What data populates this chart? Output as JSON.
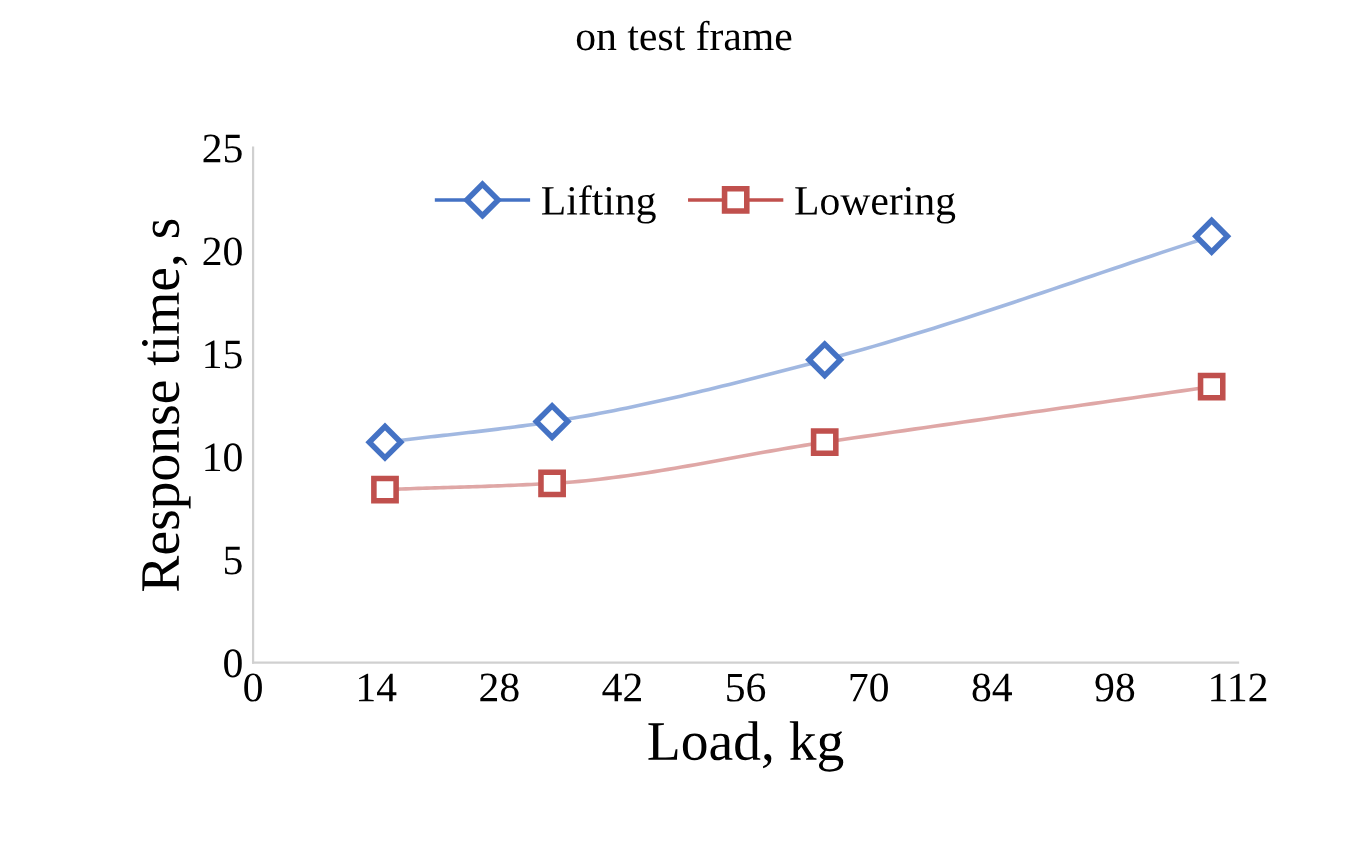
{
  "chart_data": {
    "type": "line",
    "title": "on test frame",
    "xlabel": "Load, kg",
    "ylabel": "Response time, s",
    "xlim": [
      0,
      112
    ],
    "xticks": [
      0,
      14,
      28,
      42,
      56,
      70,
      84,
      98,
      112
    ],
    "ylim": [
      0,
      25
    ],
    "yticks": [
      0,
      5,
      10,
      15,
      20,
      25
    ],
    "grid": false,
    "legend": "top",
    "line_style": "solid",
    "series": [
      {
        "name": "Lifting",
        "color": "#4472c4",
        "marker": "diamond",
        "x": [
          15,
          34,
          65,
          109
        ],
        "values": [
          10.7,
          11.7,
          14.7,
          20.7
        ]
      },
      {
        "name": "Lowering",
        "color": "#c0504d",
        "marker": "square",
        "x": [
          15,
          34,
          65,
          109
        ],
        "values": [
          8.4,
          8.7,
          10.7,
          13.4
        ]
      }
    ]
  }
}
